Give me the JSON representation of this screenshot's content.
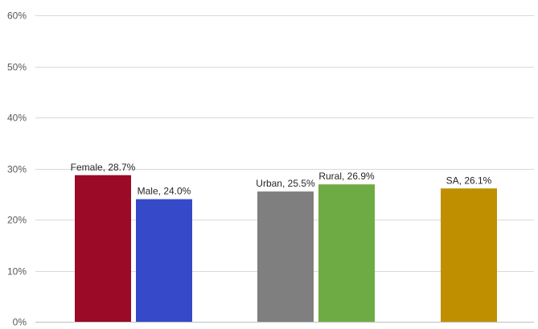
{
  "chart_data": {
    "type": "bar",
    "ylim": [
      0,
      0.6
    ],
    "yticks": [
      0,
      0.1,
      0.2,
      0.3,
      0.4,
      0.5,
      0.6
    ],
    "ytick_labels": [
      "0%",
      "10%",
      "20%",
      "30%",
      "40%",
      "50%",
      "60%"
    ],
    "grid": true,
    "legend": "none",
    "bars": [
      {
        "label": "Female, 28.7%",
        "value": 0.287,
        "color": "#9b0a27"
      },
      {
        "label": "Male, 24.0%",
        "value": 0.24,
        "color": "#3549c9"
      },
      {
        "label": "Urban, 25.5%",
        "value": 0.255,
        "color": "#7f7f7f"
      },
      {
        "label": "Rural, 26.9%",
        "value": 0.269,
        "color": "#6fab45"
      },
      {
        "label": "SA, 26.1%",
        "value": 0.261,
        "color": "#c08f00"
      }
    ]
  }
}
